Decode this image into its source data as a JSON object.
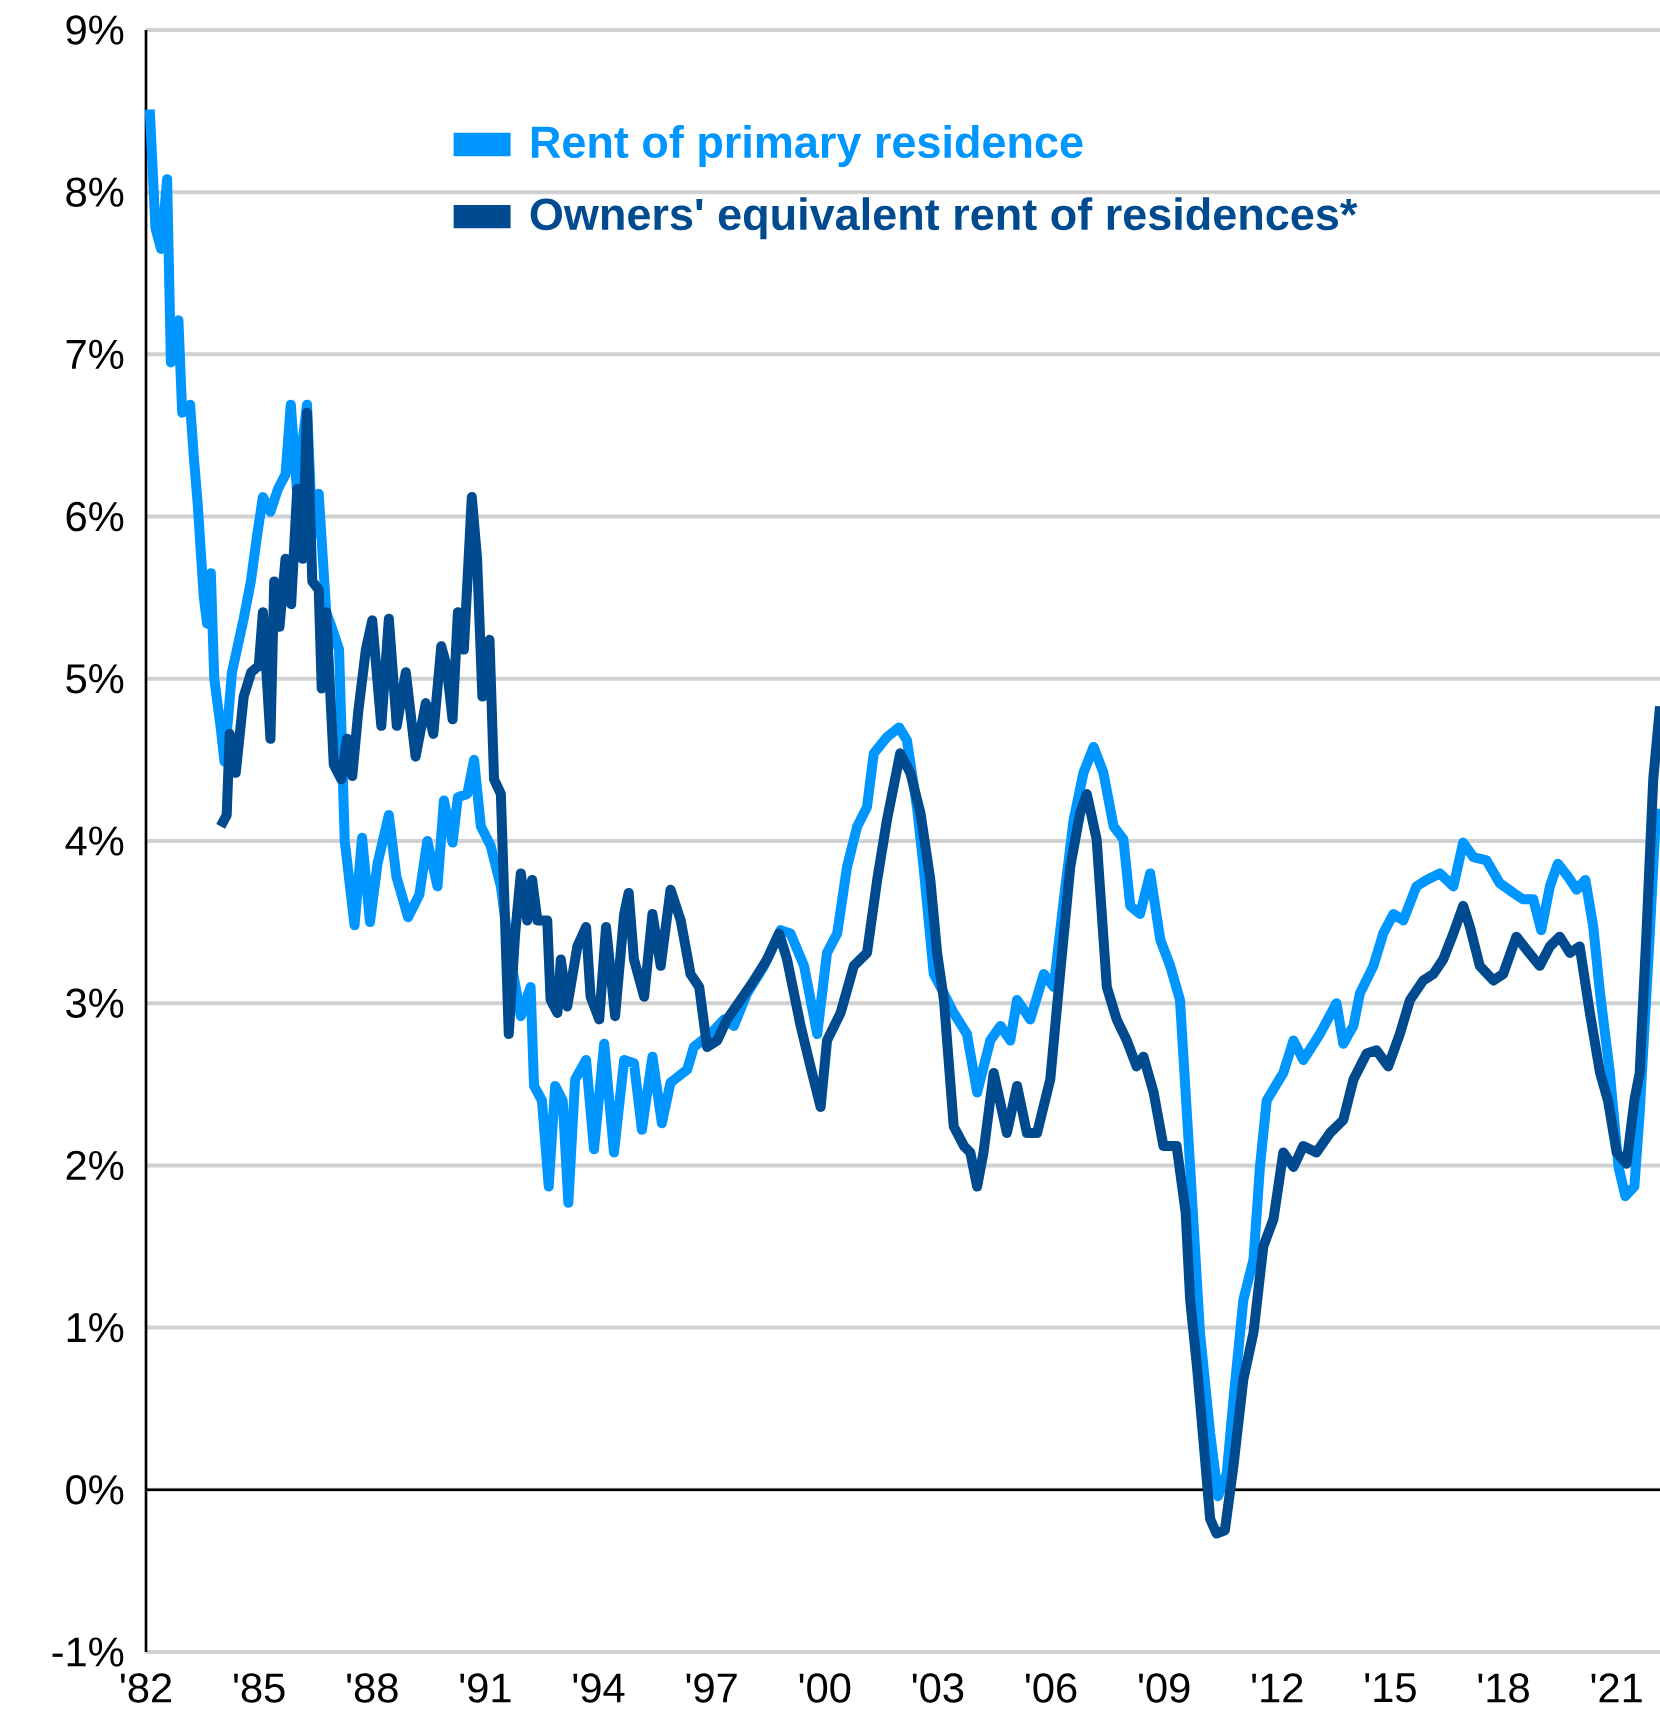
{
  "chart_data": {
    "type": "line",
    "xlim": [
      1982,
      2022.15
    ],
    "ylim": [
      -1,
      9
    ],
    "xticks": [
      {
        "value": 1982,
        "label": "'82"
      },
      {
        "value": 1985,
        "label": "'85"
      },
      {
        "value": 1988,
        "label": "'88"
      },
      {
        "value": 1991,
        "label": "'91"
      },
      {
        "value": 1994,
        "label": "'94"
      },
      {
        "value": 1997,
        "label": "'97"
      },
      {
        "value": 2000,
        "label": "'00"
      },
      {
        "value": 2003,
        "label": "'03"
      },
      {
        "value": 2006,
        "label": "'06"
      },
      {
        "value": 2009,
        "label": "'09"
      },
      {
        "value": 2012,
        "label": "'12"
      },
      {
        "value": 2015,
        "label": "'15"
      },
      {
        "value": 2018,
        "label": "'18"
      },
      {
        "value": 2021,
        "label": "'21"
      }
    ],
    "yticks": [
      {
        "value": -1,
        "label": "-1%"
      },
      {
        "value": 0,
        "label": "0%"
      },
      {
        "value": 1,
        "label": "1%"
      },
      {
        "value": 2,
        "label": "2%"
      },
      {
        "value": 3,
        "label": "3%"
      },
      {
        "value": 4,
        "label": "4%"
      },
      {
        "value": 5,
        "label": "5%"
      },
      {
        "value": 6,
        "label": "6%"
      },
      {
        "value": 7,
        "label": "7%"
      },
      {
        "value": 8,
        "label": "8%"
      },
      {
        "value": 9,
        "label": "9%"
      }
    ],
    "grid": "y",
    "legend": "top",
    "line_style": "solid",
    "series": [
      {
        "name": "Rent of primary residence",
        "color": "#0096ff",
        "x": [
          1982.1,
          1982.25,
          1982.4,
          1982.56,
          1982.66,
          1982.86,
          1982.96,
          1983.17,
          1983.27,
          1983.37,
          1983.53,
          1983.62,
          1983.72,
          1983.81,
          1983.98,
          1984.08,
          1984.28,
          1984.59,
          1984.78,
          1984.95,
          1985.1,
          1985.3,
          1985.5,
          1985.7,
          1985.84,
          1986.0,
          1986.27,
          1986.41,
          1986.58,
          1986.78,
          1986.92,
          1987.12,
          1987.27,
          1987.53,
          1987.73,
          1987.94,
          1988.14,
          1988.44,
          1988.64,
          1988.95,
          1989.25,
          1989.46,
          1989.73,
          1989.9,
          1990.13,
          1990.27,
          1990.52,
          1990.7,
          1990.88,
          1991.14,
          1991.41,
          1991.67,
          1991.94,
          1992.2,
          1992.29,
          1992.5,
          1992.68,
          1992.85,
          1993.05,
          1993.2,
          1993.38,
          1993.67,
          1993.88,
          1994.15,
          1994.41,
          1994.68,
          1994.94,
          1995.15,
          1995.43,
          1995.68,
          1995.91,
          1996.35,
          1996.53,
          1996.97,
          1997.33,
          1997.59,
          1997.94,
          1998.39,
          1998.83,
          1999.09,
          1999.45,
          1999.8,
          2000.06,
          2000.33,
          2000.59,
          2000.86,
          2001.12,
          2001.3,
          2001.65,
          2001.97,
          2002.18,
          2002.45,
          2002.62,
          2002.89,
          2003.16,
          2003.42,
          2003.77,
          2004.04,
          2004.39,
          2004.66,
          2004.92,
          2005.1,
          2005.45,
          2005.81,
          2006.07,
          2006.34,
          2006.6,
          2006.86,
          2007.13,
          2007.39,
          2007.66,
          2007.92,
          2008.1,
          2008.36,
          2008.63,
          2008.9,
          2009.16,
          2009.42,
          2009.69,
          2009.95,
          2010.22,
          2010.43,
          2010.66,
          2010.84,
          2011.1,
          2011.37,
          2011.54,
          2011.72,
          2012.16,
          2012.43,
          2012.69,
          2013.13,
          2013.57,
          2013.75,
          2014.02,
          2014.19,
          2014.55,
          2014.81,
          2015.08,
          2015.34,
          2015.69,
          2015.96,
          2016.31,
          2016.67,
          2016.93,
          2017.2,
          2017.55,
          2017.9,
          2018.26,
          2018.52,
          2018.79,
          2019.0,
          2019.23,
          2019.44,
          2019.71,
          2019.94,
          2020.17,
          2020.38,
          2020.56,
          2020.82,
          2021.05,
          2021.23,
          2021.47,
          2021.61,
          2021.88,
          2022.05
        ],
        "values": [
          8.51,
          7.78,
          7.65,
          8.08,
          6.95,
          7.21,
          6.64,
          6.69,
          6.36,
          6.08,
          5.51,
          5.34,
          5.65,
          5.0,
          4.7,
          4.49,
          5.04,
          5.37,
          5.6,
          5.89,
          6.12,
          6.03,
          6.17,
          6.26,
          6.69,
          6.17,
          6.69,
          5.89,
          6.14,
          5.41,
          5.32,
          5.18,
          4.0,
          3.48,
          4.02,
          3.5,
          3.86,
          4.16,
          3.78,
          3.53,
          3.67,
          4.0,
          3.72,
          4.25,
          3.99,
          4.27,
          4.29,
          4.5,
          4.09,
          3.97,
          3.72,
          3.27,
          2.92,
          3.1,
          2.49,
          2.4,
          1.87,
          2.49,
          2.4,
          1.77,
          2.53,
          2.65,
          2.1,
          2.75,
          2.08,
          2.65,
          2.63,
          2.22,
          2.67,
          2.26,
          2.51,
          2.59,
          2.73,
          2.81,
          2.9,
          2.86,
          3.06,
          3.23,
          3.45,
          3.43,
          3.23,
          2.81,
          3.31,
          3.43,
          3.84,
          4.09,
          4.21,
          4.54,
          4.64,
          4.7,
          4.62,
          4.2,
          3.84,
          3.18,
          3.06,
          2.94,
          2.81,
          2.45,
          2.77,
          2.86,
          2.77,
          3.02,
          2.9,
          3.18,
          3.1,
          3.64,
          4.13,
          4.42,
          4.58,
          4.42,
          4.09,
          4.01,
          3.6,
          3.55,
          3.8,
          3.39,
          3.23,
          3.02,
          1.99,
          0.97,
          0.35,
          -0.04,
          0.1,
          0.56,
          1.17,
          1.42,
          1.99,
          2.4,
          2.57,
          2.77,
          2.65,
          2.81,
          3.0,
          2.75,
          2.86,
          3.06,
          3.23,
          3.43,
          3.55,
          3.51,
          3.72,
          3.76,
          3.8,
          3.72,
          3.99,
          3.9,
          3.88,
          3.74,
          3.68,
          3.64,
          3.64,
          3.45,
          3.72,
          3.86,
          3.78,
          3.7,
          3.76,
          3.47,
          3.06,
          2.57,
          1.99,
          1.81,
          1.87,
          2.32,
          3.43,
          4.2
        ]
      },
      {
        "name": "Owners' equivalent rent of residences*",
        "color": "#004a8f",
        "x": [
          1983.98,
          1984.14,
          1984.22,
          1984.38,
          1984.59,
          1984.79,
          1984.99,
          1985.1,
          1985.3,
          1985.4,
          1985.54,
          1985.7,
          1985.85,
          1986.01,
          1986.15,
          1986.27,
          1986.41,
          1986.58,
          1986.66,
          1986.78,
          1986.98,
          1987.18,
          1987.33,
          1987.47,
          1987.63,
          1987.83,
          1988.0,
          1988.24,
          1988.44,
          1988.65,
          1988.89,
          1989.15,
          1989.42,
          1989.62,
          1989.83,
          1989.97,
          1990.13,
          1990.27,
          1990.43,
          1990.64,
          1990.78,
          1990.92,
          1991.11,
          1991.23,
          1991.41,
          1991.62,
          1991.79,
          1991.94,
          1992.11,
          1992.24,
          1992.38,
          1992.64,
          1992.73,
          1992.91,
          1993.0,
          1993.17,
          1993.44,
          1993.67,
          1993.79,
          1994.02,
          1994.2,
          1994.44,
          1994.68,
          1994.8,
          1994.94,
          1995.21,
          1995.43,
          1995.65,
          1995.91,
          1996.18,
          1996.44,
          1996.67,
          1996.88,
          1997.15,
          1997.41,
          1997.77,
          1998.12,
          1998.47,
          1998.79,
          1999.0,
          1999.36,
          1999.62,
          1999.89,
          2000.06,
          2000.42,
          2000.77,
          2001.12,
          2001.39,
          2001.65,
          2002.0,
          2002.27,
          2002.54,
          2002.8,
          2002.98,
          2003.16,
          2003.42,
          2003.69,
          2003.86,
          2004.04,
          2004.21,
          2004.48,
          2004.83,
          2005.1,
          2005.36,
          2005.63,
          2005.98,
          2006.24,
          2006.51,
          2006.77,
          2006.95,
          2007.21,
          2007.48,
          2007.74,
          2008.01,
          2008.27,
          2008.45,
          2008.72,
          2008.98,
          2009.33,
          2009.57,
          2009.69,
          2009.87,
          2010.04,
          2010.22,
          2010.39,
          2010.61,
          2010.84,
          2011.1,
          2011.37,
          2011.63,
          2011.9,
          2012.16,
          2012.43,
          2012.69,
          2013.04,
          2013.4,
          2013.75,
          2014.02,
          2014.37,
          2014.63,
          2014.94,
          2015.25,
          2015.52,
          2015.87,
          2016.14,
          2016.4,
          2016.67,
          2016.93,
          2017.11,
          2017.37,
          2017.73,
          2017.99,
          2018.34,
          2018.61,
          2018.96,
          2019.23,
          2019.49,
          2019.76,
          2020.02,
          2020.29,
          2020.56,
          2020.77,
          2021.0,
          2021.26,
          2021.47,
          2021.61,
          2021.79,
          2021.97,
          2022.15
        ],
        "values": [
          4.09,
          4.16,
          4.66,
          4.42,
          4.89,
          5.04,
          5.08,
          5.41,
          4.63,
          5.6,
          5.32,
          5.74,
          5.46,
          6.17,
          5.74,
          6.64,
          5.6,
          5.55,
          4.94,
          5.41,
          4.47,
          4.38,
          4.63,
          4.4,
          4.8,
          5.18,
          5.36,
          4.71,
          5.37,
          4.71,
          5.04,
          4.52,
          4.85,
          4.66,
          5.2,
          5.08,
          4.75,
          5.41,
          5.18,
          6.12,
          5.74,
          4.89,
          5.24,
          4.38,
          4.29,
          2.81,
          3.43,
          3.8,
          3.51,
          3.76,
          3.51,
          3.51,
          3.02,
          2.94,
          3.27,
          2.98,
          3.35,
          3.47,
          3.04,
          2.9,
          3.47,
          2.92,
          3.55,
          3.68,
          3.27,
          3.04,
          3.55,
          3.23,
          3.7,
          3.51,
          3.18,
          3.1,
          2.73,
          2.77,
          2.9,
          3.02,
          3.14,
          3.27,
          3.43,
          3.27,
          2.86,
          2.61,
          2.36,
          2.77,
          2.94,
          3.23,
          3.31,
          3.76,
          4.13,
          4.54,
          4.42,
          4.17,
          3.76,
          3.31,
          3.02,
          2.24,
          2.12,
          2.08,
          1.87,
          2.08,
          2.57,
          2.2,
          2.49,
          2.2,
          2.2,
          2.53,
          3.18,
          3.84,
          4.17,
          4.29,
          4.01,
          3.1,
          2.9,
          2.77,
          2.61,
          2.67,
          2.45,
          2.12,
          2.12,
          1.71,
          1.17,
          0.76,
          0.31,
          -0.18,
          -0.27,
          -0.25,
          0.15,
          0.68,
          0.97,
          1.5,
          1.67,
          2.08,
          1.99,
          2.12,
          2.08,
          2.2,
          2.28,
          2.53,
          2.69,
          2.71,
          2.61,
          2.81,
          3.02,
          3.14,
          3.18,
          3.27,
          3.43,
          3.6,
          3.47,
          3.23,
          3.14,
          3.18,
          3.41,
          3.33,
          3.23,
          3.35,
          3.41,
          3.31,
          3.35,
          2.94,
          2.57,
          2.4,
          2.08,
          2.01,
          2.4,
          2.57,
          3.43,
          4.38,
          4.83
        ]
      }
    ]
  }
}
